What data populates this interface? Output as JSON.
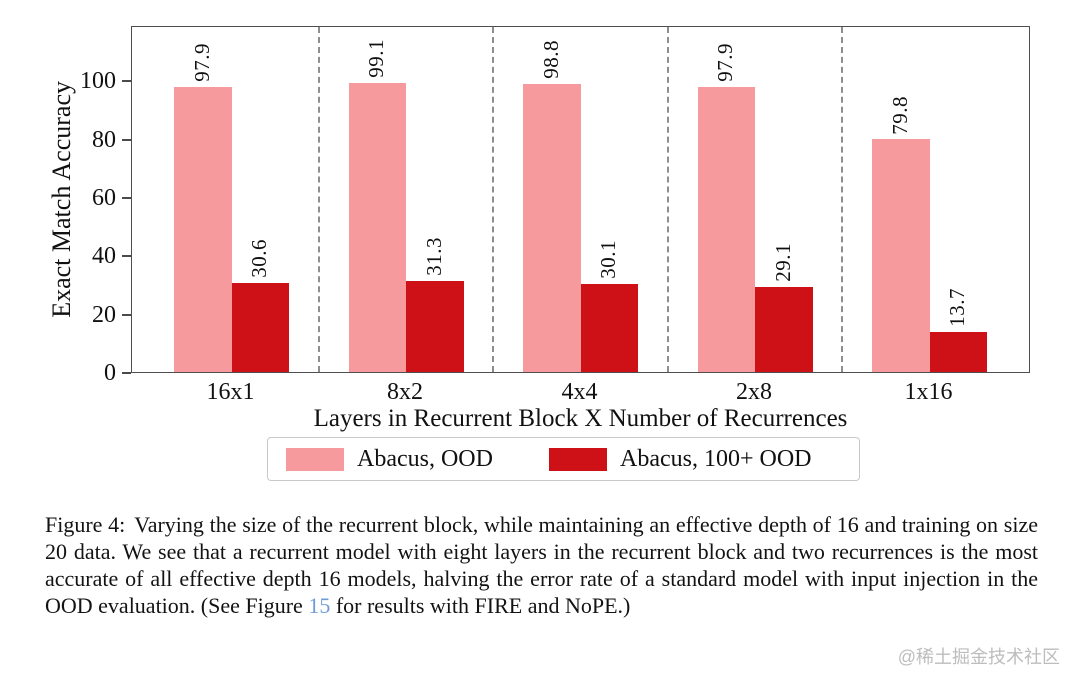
{
  "chart_data": {
    "type": "bar",
    "categories": [
      "16x1",
      "8x2",
      "4x4",
      "2x8",
      "1x16"
    ],
    "series": [
      {
        "name": "Abacus, OOD",
        "color": "#f69a9e",
        "values": [
          97.9,
          99.1,
          98.8,
          97.9,
          79.8
        ]
      },
      {
        "name": "Abacus, 100+ OOD",
        "color": "#ce1116",
        "values": [
          30.6,
          31.3,
          30.1,
          29.1,
          13.7
        ]
      }
    ],
    "title": "",
    "xlabel": "Layers in Recurrent Block X Number of Recurrences",
    "ylabel": "Exact Match Accuracy",
    "yticks": [
      0,
      20,
      40,
      60,
      80,
      100
    ],
    "ylim": [
      0,
      119
    ],
    "grid": false,
    "bar_value_labels": true,
    "bar_value_label_rotation": 90,
    "group_separators": "dashed-vertical",
    "separator_color": "#8e8e8e",
    "legend_position": "below-axis"
  },
  "caption": {
    "label": "Figure 4:",
    "before_link": "Varying the size of the recurrent block, while maintaining an effective depth of 16 and training on size 20 data. We see that a recurrent model with eight layers in the recurrent block and two recurrences is the most accurate of all effective depth 16 models, halving the error rate of a standard model with input injection in the OOD evaluation. (See Figure ",
    "link_text": "15",
    "after_link": " for results with FIRE and NoPE.)",
    "link_color": "#6f9cd8"
  },
  "watermark": {
    "text": "@稀土掘金技术社区",
    "color": "#bdbdbd"
  }
}
